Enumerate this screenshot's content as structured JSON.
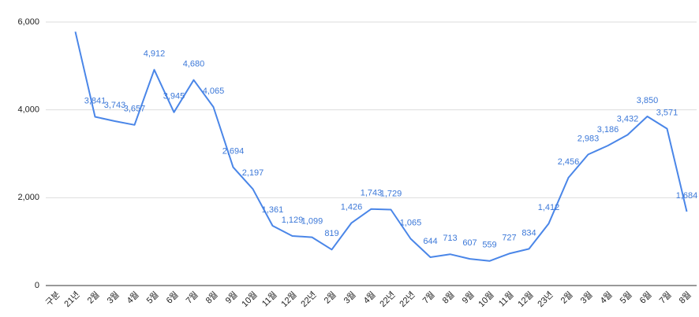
{
  "chart_data": {
    "type": "line",
    "categories": [
      "구분",
      "21년",
      "2월",
      "3월",
      "4월",
      "5월",
      "6월",
      "7월",
      "8월",
      "9월",
      "10월",
      "11월",
      "12월",
      "22년",
      "2월",
      "3월",
      "4월",
      "22년",
      "22년",
      "7월",
      "8월",
      "9월",
      "10월",
      "11월",
      "12월",
      "23년",
      "2월",
      "3월",
      "4월",
      "5월",
      "6월",
      "7월",
      "8월"
    ],
    "series": [
      {
        "color": "#4a86e8",
        "values": [
          null,
          5780,
          3841,
          3743,
          3657,
          4912,
          3945,
          4680,
          4065,
          2694,
          2197,
          1361,
          1129,
          1099,
          819,
          1426,
          1743,
          1729,
          1065,
          644,
          713,
          607,
          559,
          727,
          834,
          1412,
          2456,
          2983,
          3186,
          3432,
          3850,
          3571,
          1684
        ],
        "value_labels": [
          null,
          null,
          "3,841",
          "3,743",
          "3,657",
          "4,912",
          "3,945",
          "4,680",
          "4,065",
          "2,694",
          "2,197",
          "1,361",
          "1,129",
          "1,099",
          "819",
          "1,426",
          "1,743",
          "1,729",
          "1,065",
          "644",
          "713",
          "607",
          "559",
          "727",
          "834",
          "1,412",
          "2,456",
          "2,983",
          "3,186",
          "3,432",
          "3,850",
          "3,571",
          "1,684"
        ]
      }
    ],
    "ylim": [
      0,
      6000
    ],
    "yticks": [
      0,
      {
        "value": 2000,
        "label": "2,000"
      },
      {
        "value": 4000,
        "label": "4,000"
      },
      {
        "value": 6000,
        "label": "6,000"
      }
    ],
    "grid": true
  }
}
